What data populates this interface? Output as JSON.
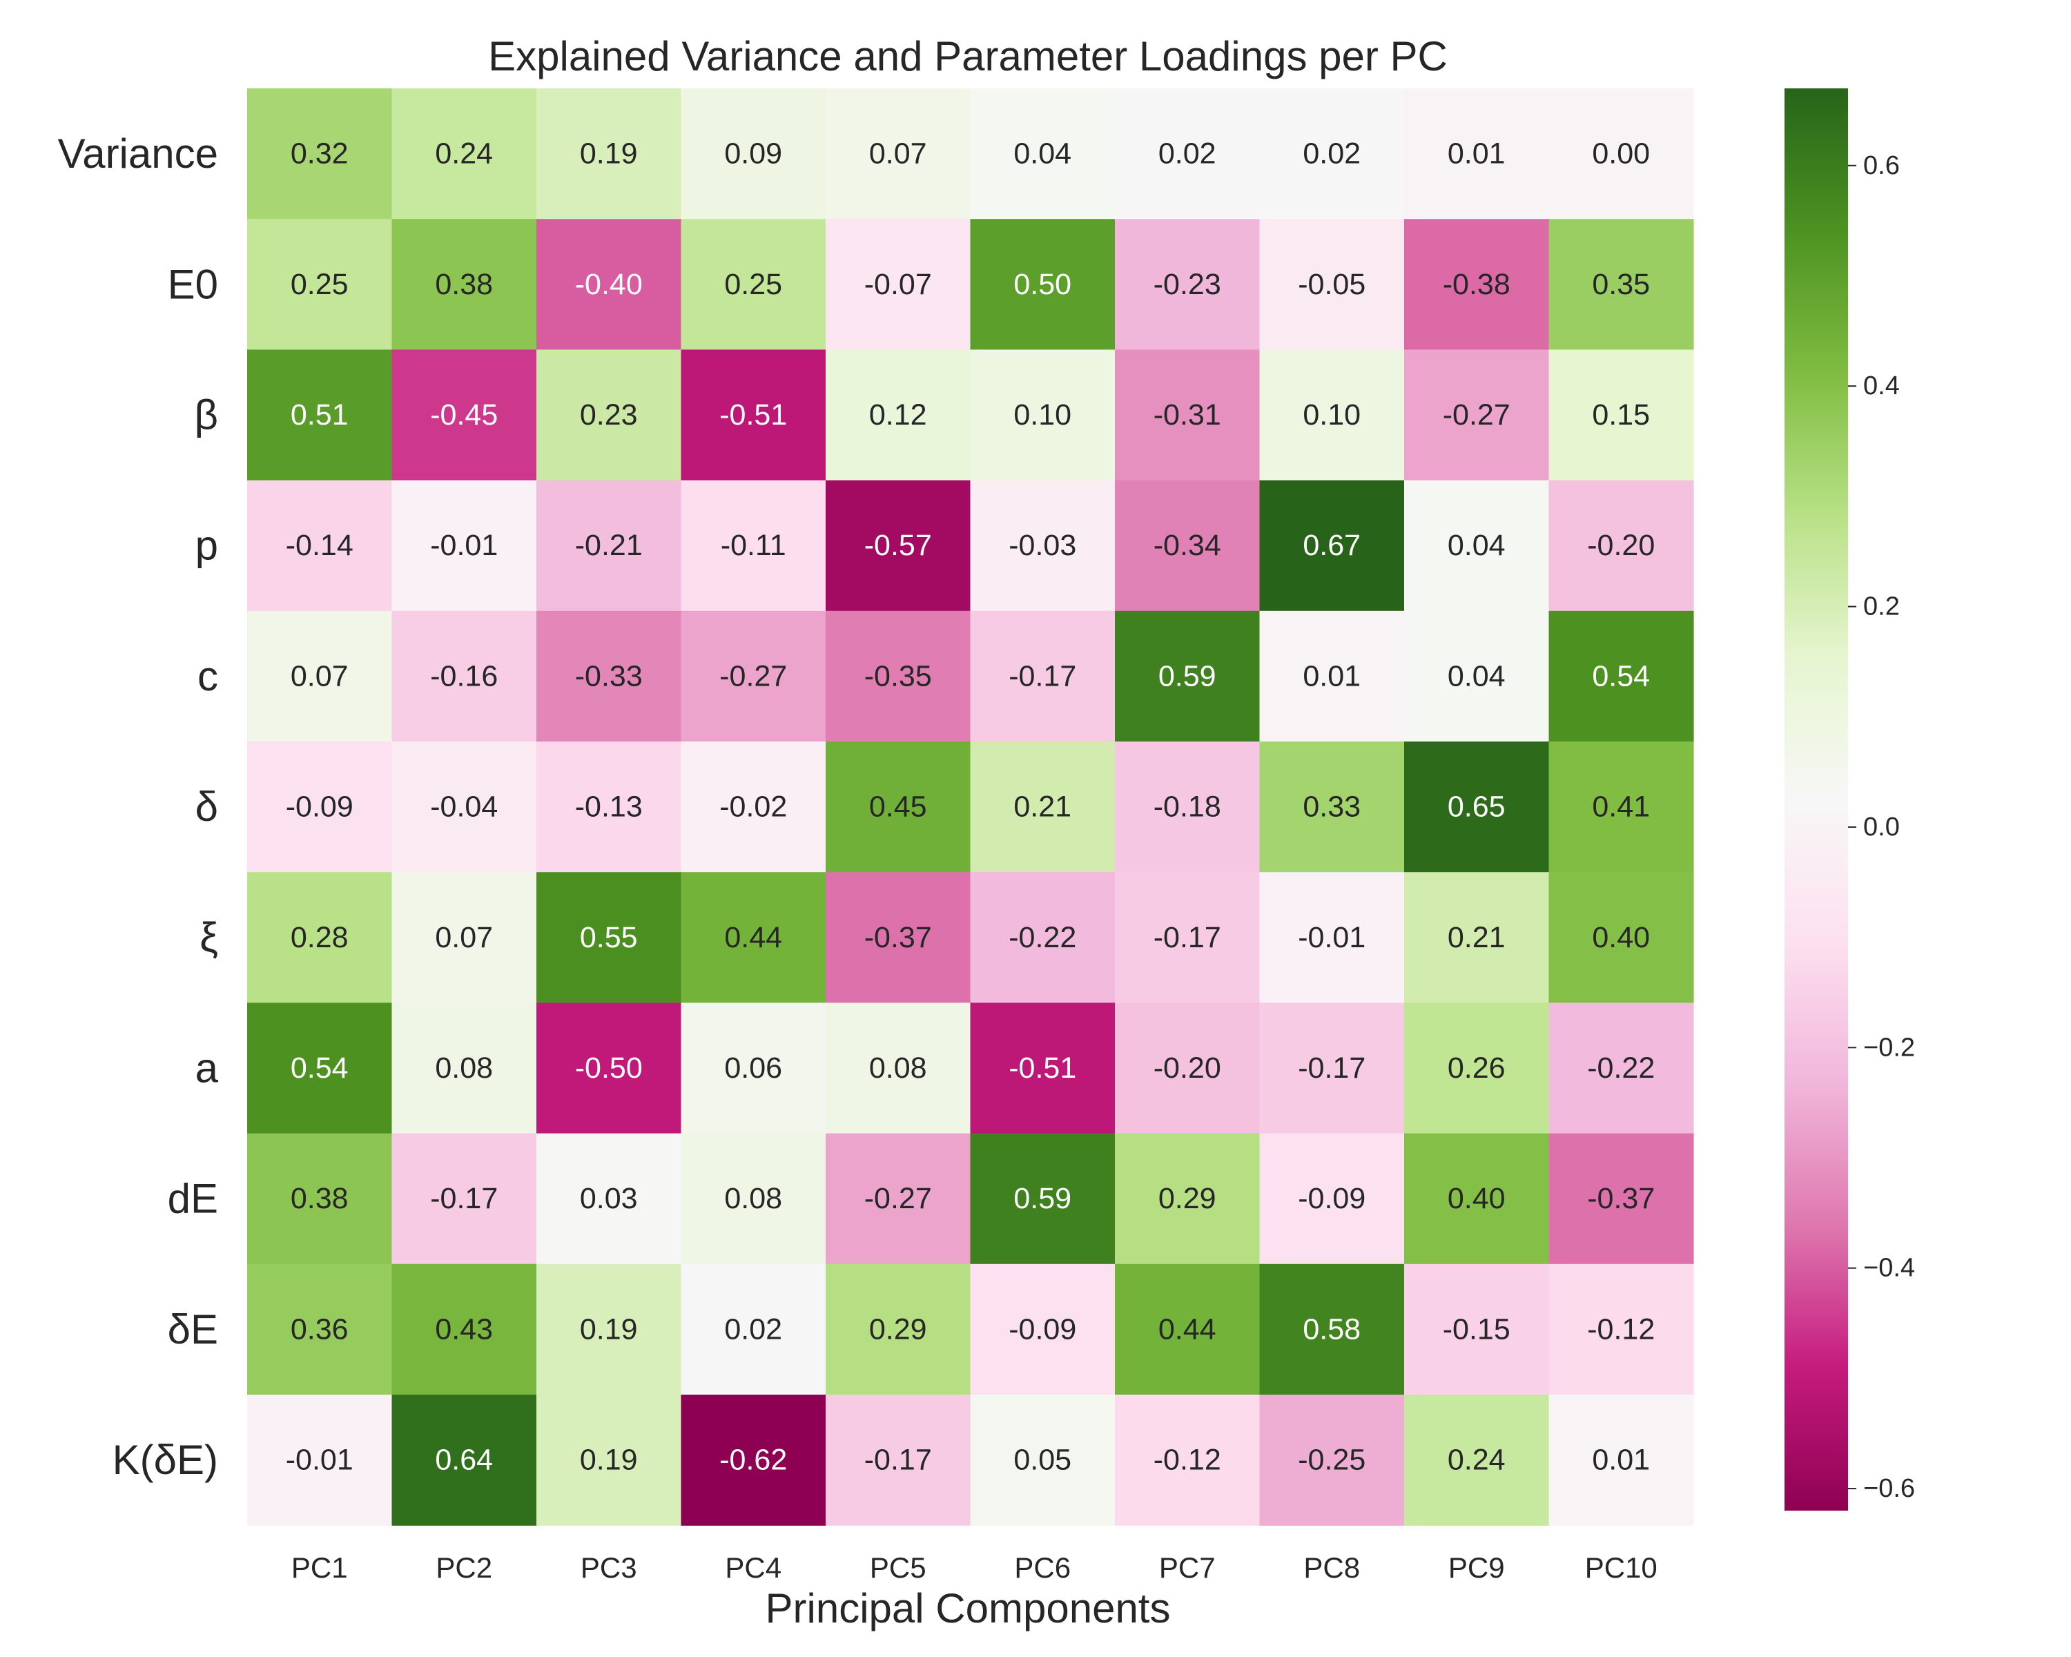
{
  "chart_data": {
    "type": "heatmap",
    "title": "Explained Variance and Parameter Loadings per PC",
    "xlabel": "Principal Components",
    "ylabel": "",
    "columns": [
      "PC1",
      "PC2",
      "PC3",
      "PC4",
      "PC5",
      "PC6",
      "PC7",
      "PC8",
      "PC9",
      "PC10"
    ],
    "rows": [
      "Variance",
      "E0",
      "β",
      "p",
      "c",
      "δ",
      "ξ",
      "a",
      "dE",
      "δE",
      "K(δE)"
    ],
    "values": [
      [
        0.32,
        0.24,
        0.19,
        0.09,
        0.07,
        0.04,
        0.02,
        0.02,
        0.01,
        0.0
      ],
      [
        0.25,
        0.38,
        -0.4,
        0.25,
        -0.07,
        0.5,
        -0.23,
        -0.05,
        -0.38,
        0.35
      ],
      [
        0.51,
        -0.45,
        0.23,
        -0.51,
        0.12,
        0.1,
        -0.31,
        0.1,
        -0.27,
        0.15
      ],
      [
        -0.14,
        -0.01,
        -0.21,
        -0.11,
        -0.57,
        -0.03,
        -0.34,
        0.67,
        0.04,
        -0.2
      ],
      [
        0.07,
        -0.16,
        -0.33,
        -0.27,
        -0.35,
        -0.17,
        0.59,
        0.01,
        0.04,
        0.54
      ],
      [
        -0.09,
        -0.04,
        -0.13,
        -0.02,
        0.45,
        0.21,
        -0.18,
        0.33,
        0.65,
        0.41
      ],
      [
        0.28,
        0.07,
        0.55,
        0.44,
        -0.37,
        -0.22,
        -0.17,
        -0.01,
        0.21,
        0.4
      ],
      [
        0.54,
        0.08,
        -0.5,
        0.06,
        0.08,
        -0.51,
        -0.2,
        -0.17,
        0.26,
        -0.22
      ],
      [
        0.38,
        -0.17,
        0.03,
        0.08,
        -0.27,
        0.59,
        0.29,
        -0.09,
        0.4,
        -0.37
      ],
      [
        0.36,
        0.43,
        0.19,
        0.02,
        0.29,
        -0.09,
        0.44,
        0.58,
        -0.15,
        -0.12
      ],
      [
        -0.01,
        0.64,
        0.19,
        -0.62,
        -0.17,
        0.05,
        -0.12,
        -0.25,
        0.24,
        0.01
      ]
    ],
    "cell_labels": [
      [
        "0.32",
        "0.24",
        "0.19",
        "0.09",
        "0.07",
        "0.04",
        "0.02",
        "0.02",
        "0.01",
        "0.00"
      ],
      [
        "0.25",
        "0.38",
        "-0.40",
        "0.25",
        "-0.07",
        "0.50",
        "-0.23",
        "-0.05",
        "-0.38",
        "0.35"
      ],
      [
        "0.51",
        "-0.45",
        "0.23",
        "-0.51",
        "0.12",
        "0.10",
        "-0.31",
        "0.10",
        "-0.27",
        "0.15"
      ],
      [
        "-0.14",
        "-0.01",
        "-0.21",
        "-0.11",
        "-0.57",
        "-0.03",
        "-0.34",
        "0.67",
        "0.04",
        "-0.20"
      ],
      [
        "0.07",
        "-0.16",
        "-0.33",
        "-0.27",
        "-0.35",
        "-0.17",
        "0.59",
        "0.01",
        "0.04",
        "0.54"
      ],
      [
        "-0.09",
        "-0.04",
        "-0.13",
        "-0.02",
        "0.45",
        "0.21",
        "-0.18",
        "0.33",
        "0.65",
        "0.41"
      ],
      [
        "0.28",
        "0.07",
        "0.55",
        "0.44",
        "-0.37",
        "-0.22",
        "-0.17",
        "-0.01",
        "0.21",
        "0.40"
      ],
      [
        "0.54",
        "0.08",
        "-0.50",
        "0.06",
        "0.08",
        "-0.51",
        "-0.20",
        "-0.17",
        "0.26",
        "-0.22"
      ],
      [
        "0.38",
        "-0.17",
        "0.03",
        "0.08",
        "-0.27",
        "0.59",
        "0.29",
        "-0.09",
        "0.40",
        "-0.37"
      ],
      [
        "0.36",
        "0.43",
        "0.19",
        "0.02",
        "0.29",
        "-0.09",
        "0.44",
        "0.58",
        "-0.15",
        "-0.12"
      ],
      [
        "-0.01",
        "0.64",
        "0.19",
        "-0.62",
        "-0.17",
        "0.05",
        "-0.12",
        "-0.25",
        "0.24",
        "0.01"
      ]
    ],
    "colormap": "PiYG",
    "color_range": [
      -0.62,
      0.67
    ],
    "colorbar": {
      "ticks": [
        -0.6,
        -0.4,
        -0.2,
        0.0,
        0.2,
        0.4,
        0.6
      ],
      "tick_labels": [
        "−0.6",
        "−0.4",
        "−0.2",
        "0.0",
        "0.2",
        "0.4",
        "0.6"
      ]
    },
    "grid": false,
    "legend": "colorbar-right",
    "colors": {
      "negative_extreme": "#8e0152",
      "center": "#f7f7f7",
      "positive_extreme": "#276419"
    }
  }
}
